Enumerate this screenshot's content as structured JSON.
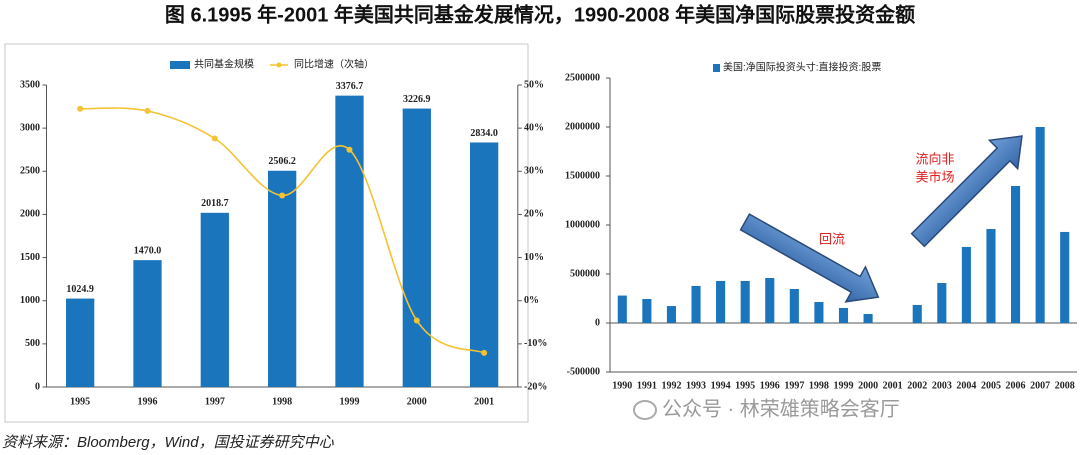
{
  "title": "图 6.1995 年-2001 年美国共同基金发展情况，1990-2008 年美国净国际股票投资金额",
  "source": "资料来源：Bloomberg，Wind，国投证券研究中心",
  "watermark": "公众号 · 林荣雄策略会客厅",
  "chart_data": [
    {
      "type": "bar",
      "categories": [
        "1995",
        "1996",
        "1997",
        "1998",
        "1999",
        "2000",
        "2001"
      ],
      "series": [
        {
          "name": "共同基金规模",
          "type": "bar",
          "color": "#1b75bc",
          "values": [
            1024.9,
            1470.0,
            2018.7,
            2506.2,
            3376.7,
            3226.9,
            2834.0
          ],
          "value_labels": [
            "1024.9",
            "1470.0",
            "2018.7",
            "2506.2",
            "3376.7",
            "3226.9",
            "2834.0"
          ]
        },
        {
          "name": "同比增速（次轴）",
          "type": "line",
          "axis": "y2",
          "color": "#f5c232",
          "values": [
            44.5,
            44,
            37.6,
            24.4,
            35,
            -4.6,
            -12.1
          ]
        }
      ],
      "ylim": [
        0,
        3500
      ],
      "yticks": [
        0,
        500,
        1000,
        1500,
        2000,
        2500,
        3000,
        3500
      ],
      "y2lim": [
        -20,
        50
      ],
      "y2ticks": [
        {
          "value": -20,
          "label": "-20%"
        },
        {
          "value": -10,
          "label": "-10%"
        },
        {
          "value": 0,
          "label": "0%"
        },
        {
          "value": 10,
          "label": "10%"
        },
        {
          "value": 20,
          "label": "20%"
        },
        {
          "value": 30,
          "label": "30%"
        },
        {
          "value": 40,
          "label": "40%"
        },
        {
          "value": 50,
          "label": "50%"
        }
      ],
      "grid": false
    },
    {
      "type": "bar",
      "categories": [
        "1990",
        "1991",
        "1992",
        "1993",
        "1994",
        "1995",
        "1996",
        "1997",
        "1998",
        "1999",
        "2000",
        "2001",
        "2002",
        "2003",
        "2004",
        "2005",
        "2006",
        "2007",
        "2008"
      ],
      "series": [
        {
          "name": "美国:净国际投资头寸:直接投资:股票",
          "type": "bar",
          "color": "#1b75bc",
          "values": [
            280000,
            245000,
            173000,
            378000,
            429000,
            429000,
            459000,
            347000,
            214000,
            153000,
            92000,
            null,
            184000,
            408000,
            776000,
            959000,
            1398000,
            2000000,
            929000
          ]
        }
      ],
      "ylim": [
        -500000,
        2500000
      ],
      "yticks": [
        -500000,
        0,
        500000,
        1000000,
        1500000,
        2000000,
        2500000
      ],
      "grid": false,
      "annotations": [
        {
          "lines": [
            "回流"
          ],
          "color": "#e02020"
        },
        {
          "lines": [
            "流向非",
            "美市场"
          ],
          "color": "#e02020"
        }
      ]
    }
  ]
}
